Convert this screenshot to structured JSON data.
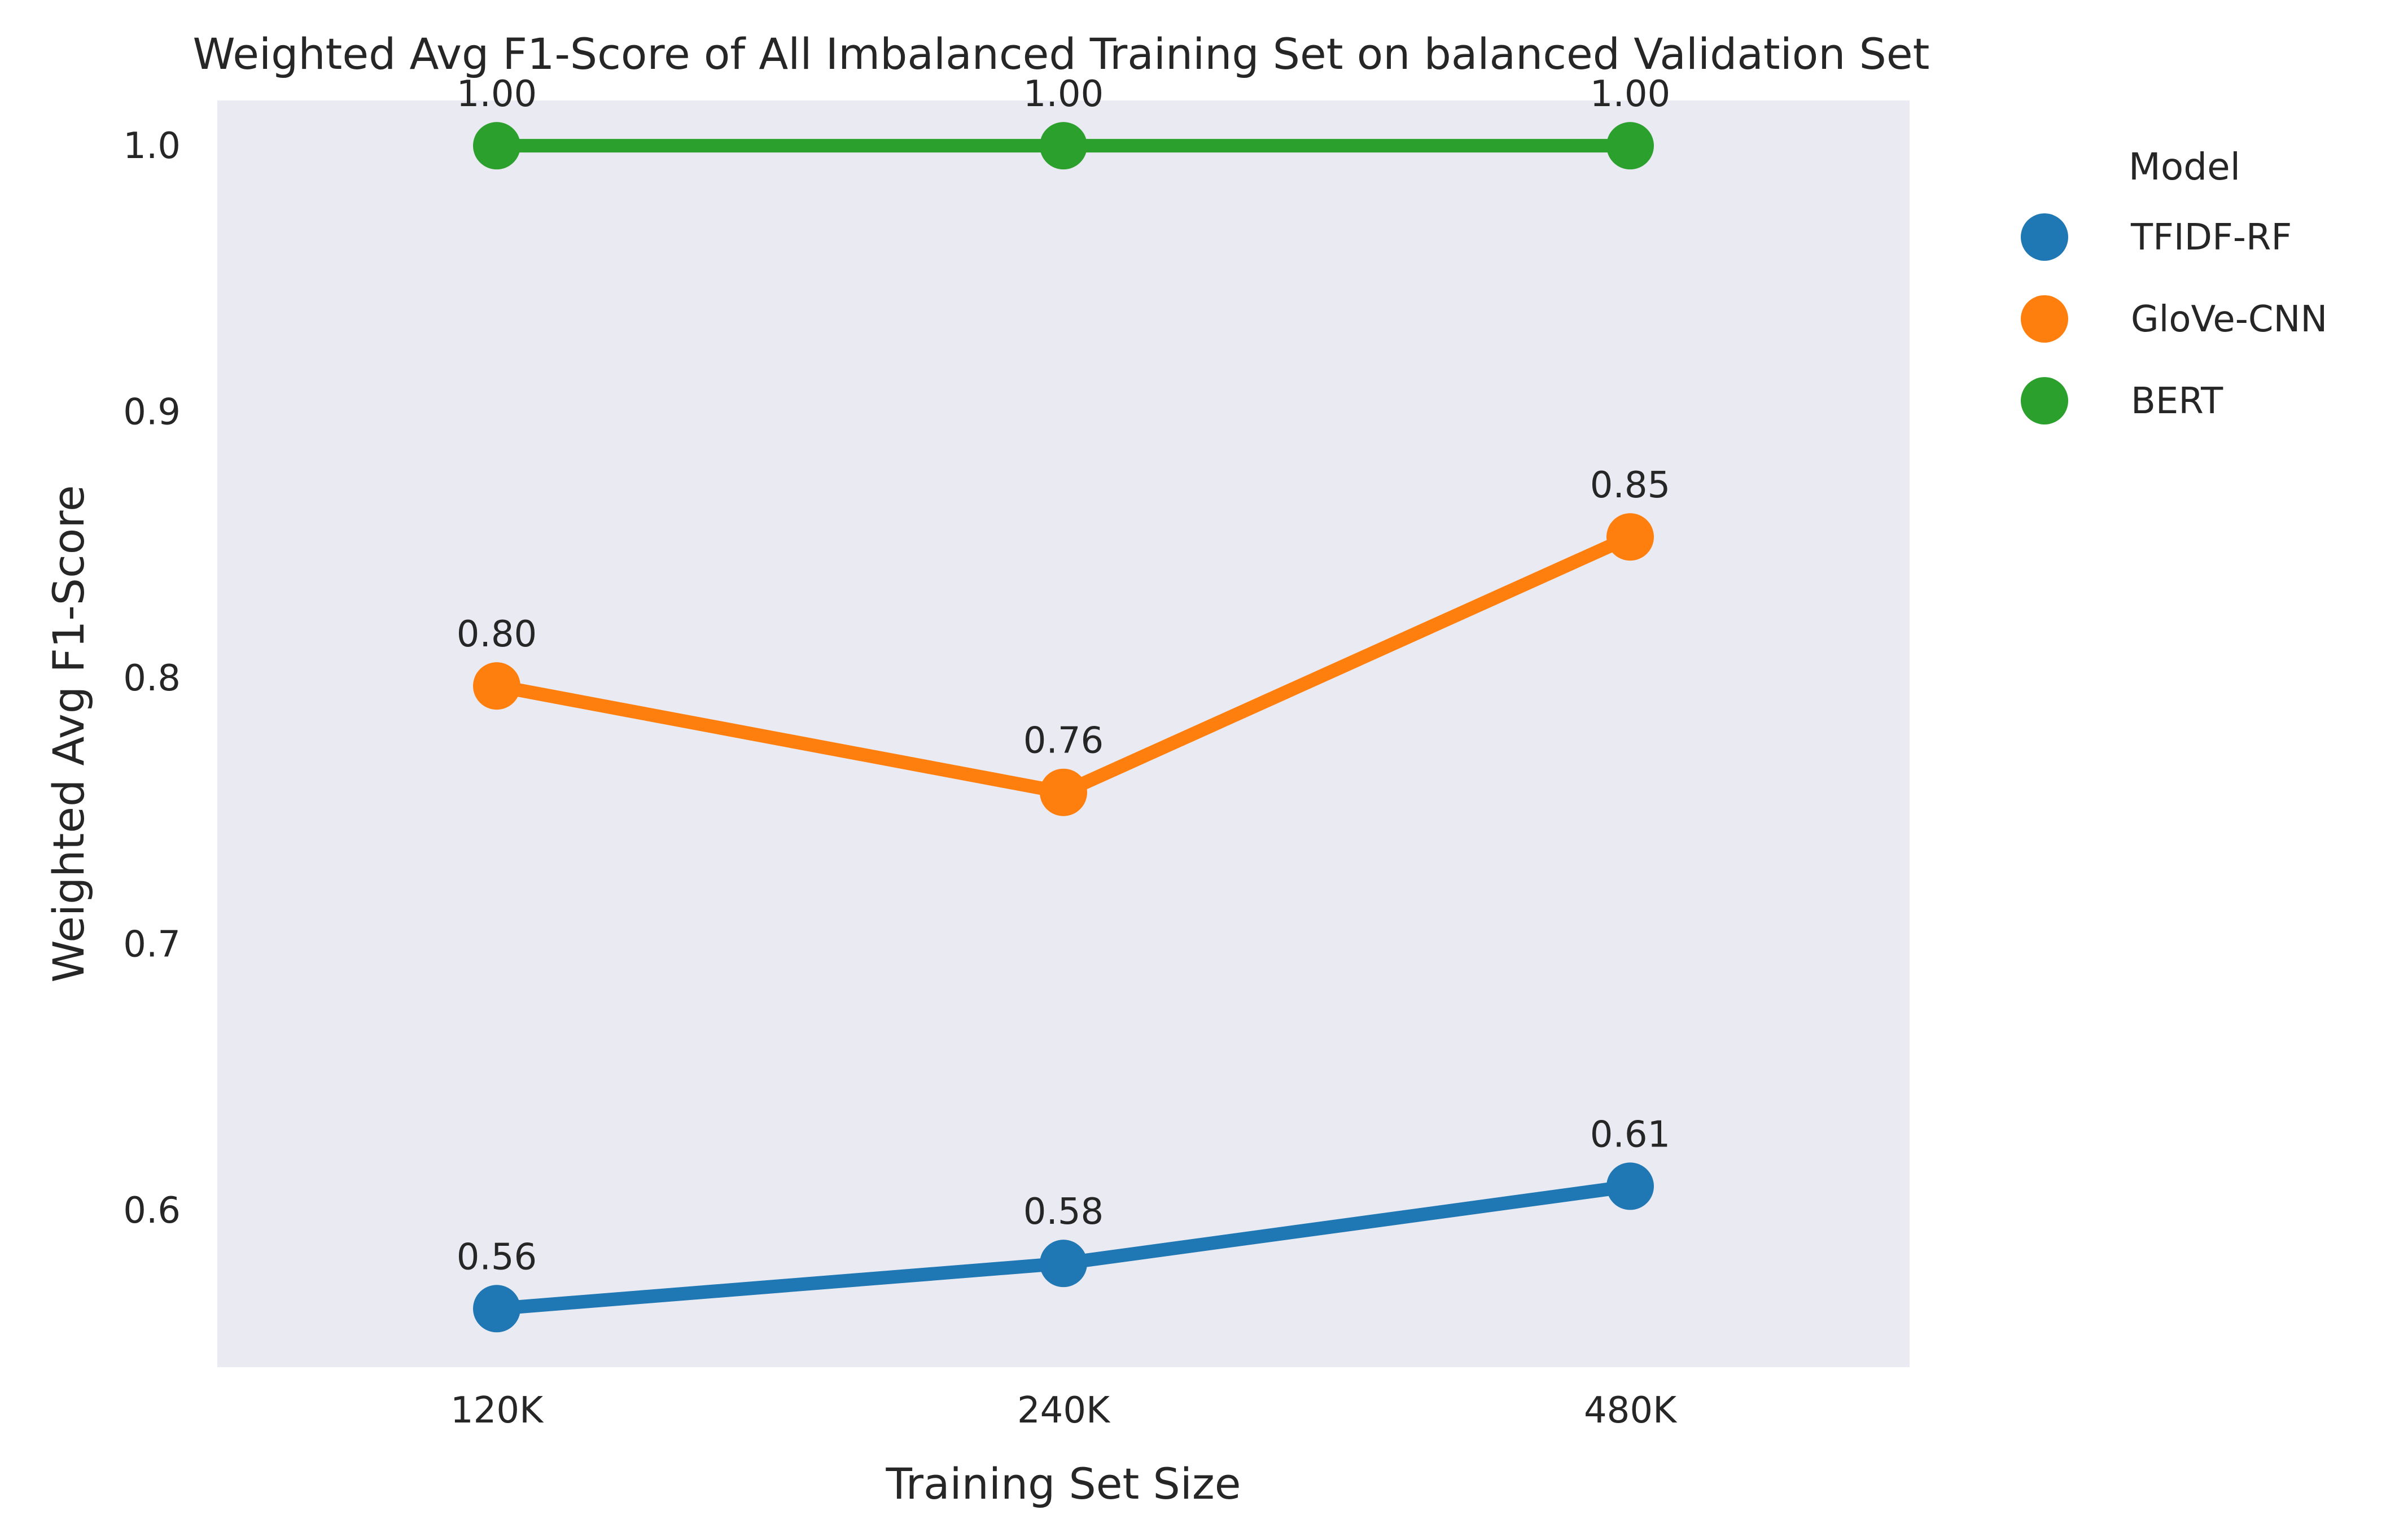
{
  "chart_data": {
    "type": "line",
    "title": "Weighted Avg F1-Score of All Imbalanced Training Set on balanced Validation Set",
    "xlabel": "Training Set Size",
    "ylabel": "Weighted Avg F1-Score",
    "categories": [
      "120K",
      "240K",
      "480K"
    ],
    "ylim": [
      0.541,
      1.017
    ],
    "yticks": [
      0.6,
      0.7,
      0.8,
      0.9,
      1.0
    ],
    "ytick_labels": [
      "0.6",
      "0.7",
      "0.8",
      "0.9",
      "1.0"
    ],
    "grid": false,
    "legend": {
      "title": "Model",
      "placement": "outside-right-top"
    },
    "series": [
      {
        "name": "TFIDF-RF",
        "color": "#1f77b4",
        "values": [
          0.563,
          0.58,
          0.609
        ],
        "labels": [
          "0.56",
          "0.58",
          "0.61"
        ]
      },
      {
        "name": "GloVe-CNN",
        "color": "#ff7f0e",
        "values": [
          0.797,
          0.757,
          0.853
        ],
        "labels": [
          "0.80",
          "0.76",
          "0.85"
        ]
      },
      {
        "name": "BERT",
        "color": "#2ca02c",
        "values": [
          1.0,
          1.0,
          1.0
        ],
        "labels": [
          "1.00",
          "1.00",
          "1.00"
        ]
      }
    ],
    "plot_background": "#eaeaf2"
  }
}
